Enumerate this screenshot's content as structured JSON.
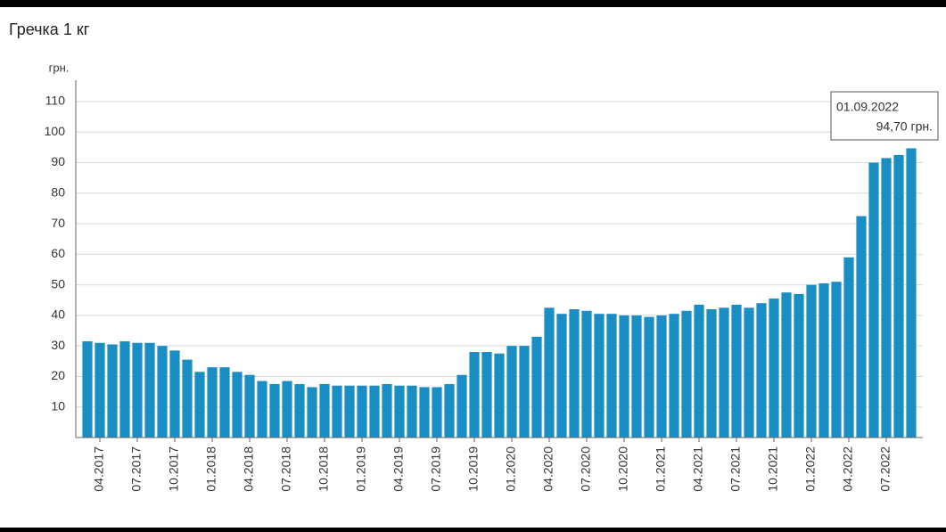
{
  "chart_data": {
    "type": "bar",
    "title": "Гречка 1 кг",
    "y_unit_label": "грн.",
    "categories": [
      null,
      "04.2017",
      null,
      null,
      "07.2017",
      null,
      null,
      "10.2017",
      null,
      null,
      "01.2018",
      null,
      null,
      "04.2018",
      null,
      null,
      "07.2018",
      null,
      null,
      "10.2018",
      null,
      null,
      "01.2019",
      null,
      null,
      "04.2019",
      null,
      null,
      "07.2019",
      null,
      null,
      "10.2019",
      null,
      null,
      "01.2020",
      null,
      null,
      "04.2020",
      null,
      null,
      "07.2020",
      null,
      null,
      "10.2020",
      null,
      null,
      "01.2021",
      null,
      null,
      "04.2021",
      null,
      null,
      "07.2021",
      null,
      null,
      "10.2021",
      null,
      null,
      "01.2022",
      null,
      null,
      "04.2022",
      null,
      null,
      "07.2022",
      null,
      null
    ],
    "values": [
      31.5,
      31,
      30.5,
      31.5,
      31,
      31,
      30,
      28.5,
      25.5,
      21.5,
      23,
      23,
      21.5,
      20.5,
      18.5,
      17.5,
      18.5,
      17.5,
      16.5,
      17.5,
      17,
      17,
      17,
      17,
      17.5,
      17,
      17,
      16.5,
      16.5,
      17.5,
      20.5,
      28,
      28,
      27.5,
      30,
      30,
      33,
      42.5,
      40.5,
      42,
      41.5,
      40.5,
      40.5,
      40,
      40,
      39.5,
      40,
      40.5,
      41.5,
      43.5,
      42,
      42.5,
      43.5,
      42.5,
      44,
      45.5,
      47.5,
      47,
      50,
      50.5,
      51,
      59,
      72.5,
      90,
      91.5,
      92.5,
      94.7
    ],
    "color": "#1b8dc5",
    "ylim": [
      0,
      117
    ],
    "yticks": [
      10,
      20,
      30,
      40,
      50,
      60,
      70,
      80,
      90,
      100,
      110
    ],
    "grid": true,
    "annotation": {
      "date": "01.09.2022",
      "value_label": "94,70 грн."
    }
  }
}
